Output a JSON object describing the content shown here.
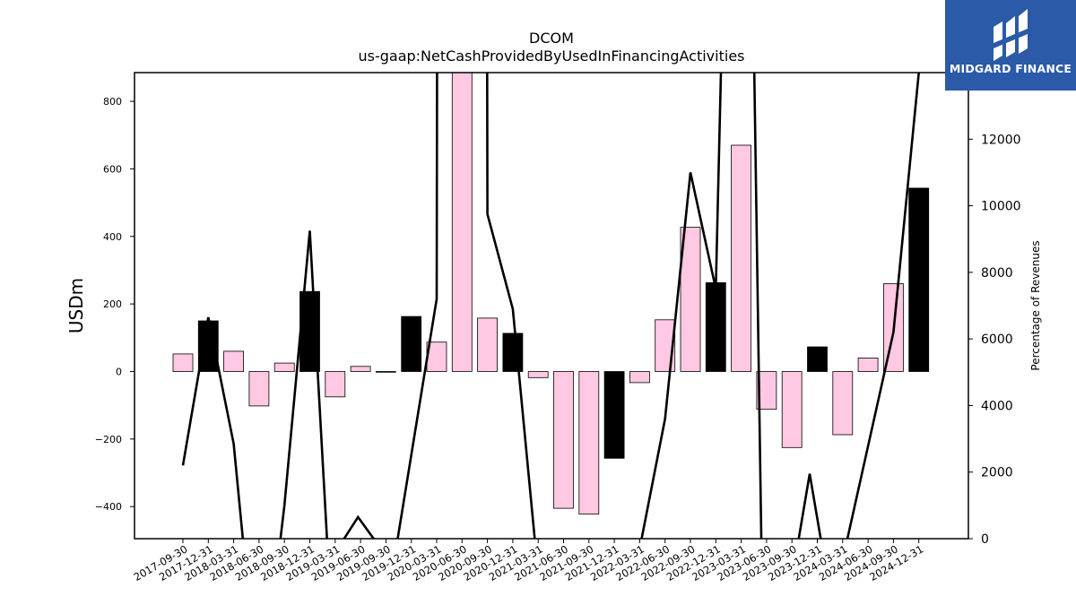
{
  "chart_data": {
    "type": "bar+line",
    "title": "DCOM",
    "subtitle": "us-gaap:NetCashProvidedByUsedInFinancingActivities",
    "ylabel": "USDm",
    "y2label": "Percentage of Revenues",
    "ylim": [
      -495,
      885
    ],
    "y2lim": [
      0,
      14000
    ],
    "yticks": [
      -400,
      -200,
      0,
      200,
      400,
      600,
      800
    ],
    "y2ticks": [
      0,
      2000,
      4000,
      6000,
      8000,
      10000,
      12000
    ],
    "categories": [
      "2017-09-30",
      "2017-12-31",
      "2018-03-31",
      "2018-06-30",
      "2018-09-30",
      "2018-12-31",
      "2019-03-31",
      "2019-06-30",
      "2019-09-30",
      "2019-12-31",
      "2020-03-31",
      "2020-06-30",
      "2020-09-30",
      "2020-12-31",
      "2021-03-31",
      "2021-06-30",
      "2021-09-30",
      "2021-12-31",
      "2022-03-31",
      "2022-06-30",
      "2022-09-30",
      "2022-12-31",
      "2023-03-31",
      "2023-06-30",
      "2023-09-30",
      "2023-12-31",
      "2024-03-31",
      "2024-06-30",
      "2024-09-30",
      "2024-12-31"
    ],
    "bar_series": {
      "name": "",
      "values": [
        52,
        150,
        60,
        -102,
        25,
        237,
        -75,
        15,
        0,
        163,
        87,
        900,
        158,
        113,
        -18,
        -405,
        -422,
        -257,
        -33,
        153,
        427,
        263,
        670,
        -112,
        -225,
        73,
        -187,
        40,
        260,
        543
      ],
      "highlight": [
        false,
        true,
        false,
        false,
        false,
        true,
        false,
        false,
        false,
        true,
        false,
        false,
        false,
        true,
        false,
        false,
        false,
        true,
        false,
        false,
        false,
        true,
        false,
        false,
        false,
        true,
        false,
        false,
        false,
        true
      ],
      "colors": {
        "normal": "#ffc8e3",
        "highlight": "#000000",
        "edge": "#000000"
      }
    },
    "line_series": {
      "name": "",
      "values": [
        2200,
        6650,
        2850,
        -300,
        -300,
        1000,
        9250,
        -300,
        -300,
        650,
        -300,
        -300,
        7200,
        30000,
        30000,
        9750,
        6900,
        -300,
        -300,
        -300,
        -300,
        3600,
        11000,
        7500,
        30000,
        30000,
        -300,
        -300,
        1950,
        -300,
        -300,
        6200,
        14000
      ],
      "x_index": [
        0,
        1,
        2,
        2.4,
        3.8,
        4,
        5,
        5.7,
        6.1,
        6.9,
        7.8,
        8.4,
        10,
        10.05,
        11.95,
        12,
        13,
        13.9,
        14.6,
        16.5,
        18,
        19,
        20,
        21,
        21.7,
        22.2,
        22.8,
        24.2,
        24.7,
        25.2,
        26.1,
        28,
        29
      ]
    },
    "grid": false,
    "legend": "none"
  },
  "logo": {
    "text": "MIDGARD FINANCE"
  }
}
